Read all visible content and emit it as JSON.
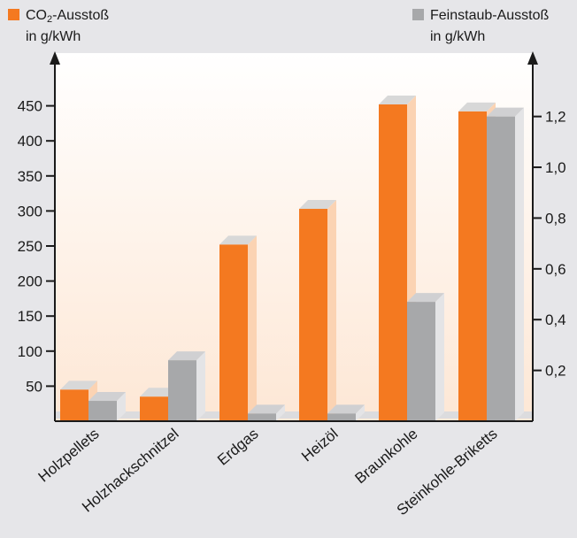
{
  "legend": {
    "co2": {
      "line1_pre": "CO",
      "line1_sub": "2",
      "line1_post": "-Ausstoß",
      "line2": "in g/kWh"
    },
    "dust": {
      "line1": "Feinstaub-Ausstoß",
      "line2": "in g/kWh"
    }
  },
  "colors": {
    "co2": "#f47920",
    "co2_side": "#fbd3b3",
    "co2_top": "#d8d8d8",
    "dust": "#a7a8aa",
    "dust_side": "#e4e4e6",
    "dust_top": "#d0d0d2",
    "axis": "#1a1a1a",
    "bg_top": "#ffffff",
    "bg_bottom": "#fde7d5",
    "page_bg": "#e6e6e9"
  },
  "chart_data": {
    "type": "bar",
    "categories": [
      "Holzpellets",
      "Holzhackschnitzel",
      "Erdgas",
      "Heizöl",
      "Braunkohle",
      "Steinkohle-Briketts"
    ],
    "series": [
      {
        "name": "CO₂-Ausstoß in g/kWh",
        "axis": "left",
        "values": [
          45,
          35,
          252,
          303,
          452,
          442
        ]
      },
      {
        "name": "Feinstaub-Ausstoß in g/kWh",
        "axis": "right",
        "values": [
          0.08,
          0.24,
          0.03,
          0.03,
          0.47,
          1.2
        ]
      }
    ],
    "left_axis": {
      "ticks": [
        50,
        100,
        150,
        200,
        250,
        300,
        350,
        400,
        450
      ],
      "ylim": [
        0,
        500
      ]
    },
    "right_axis": {
      "ticks": [
        0.2,
        0.4,
        0.6,
        0.8,
        1.0,
        1.2
      ],
      "tick_labels": [
        "0,2",
        "0,4",
        "0,6",
        "0,8",
        "1,0",
        "1,2"
      ],
      "ylim": [
        0,
        1.38
      ]
    },
    "grid": false,
    "legend_position": "top"
  }
}
